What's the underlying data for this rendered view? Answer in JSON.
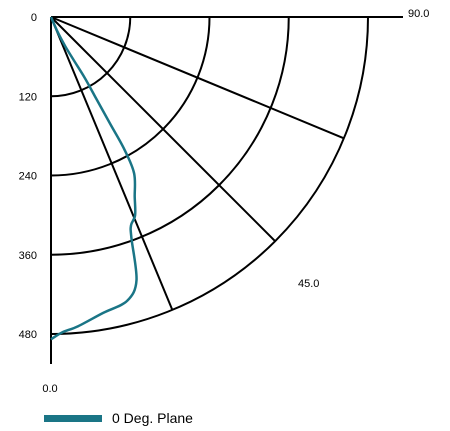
{
  "chart_data": {
    "type": "polar-line",
    "title": "",
    "radial_ticks": [
      "0",
      "120",
      "240",
      "360",
      "480"
    ],
    "radial_range": [
      0,
      480
    ],
    "angle_range_deg": [
      0.0,
      90.0
    ],
    "angle_labels": [
      {
        "angle": 90.0,
        "text": "90.0"
      },
      {
        "angle": 45.0,
        "text": "45.0"
      },
      {
        "angle": 0.0,
        "text": "0.0"
      }
    ],
    "spoke_angles_deg": [
      0,
      22.5,
      45,
      67.5,
      90
    ],
    "rings": [
      120,
      240,
      360,
      480
    ],
    "grid": true,
    "legend_position": "bottom-left",
    "series": [
      {
        "name": "0 Deg. Plane",
        "color": "#1a7586",
        "points": [
          {
            "angle": 0,
            "value": 488
          },
          {
            "angle": 2,
            "value": 478
          },
          {
            "angle": 5,
            "value": 470
          },
          {
            "angle": 10,
            "value": 455
          },
          {
            "angle": 15,
            "value": 445
          },
          {
            "angle": 18,
            "value": 419
          },
          {
            "angle": 20,
            "value": 356
          },
          {
            "angle": 21,
            "value": 338
          },
          {
            "angle": 23,
            "value": 326
          },
          {
            "angle": 25,
            "value": 300
          },
          {
            "angle": 28,
            "value": 268
          },
          {
            "angle": 29,
            "value": 230
          },
          {
            "angle": 29,
            "value": 185
          },
          {
            "angle": 29,
            "value": 140
          },
          {
            "angle": 29,
            "value": 105
          },
          {
            "angle": 28,
            "value": 78
          },
          {
            "angle": 26,
            "value": 50
          },
          {
            "angle": 24,
            "value": 25
          },
          {
            "angle": 20,
            "value": 0
          }
        ]
      }
    ]
  }
}
